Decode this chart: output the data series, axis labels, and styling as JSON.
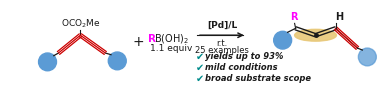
{
  "bg_color": "#ffffff",
  "blue_color": "#5b9bd5",
  "red_color": "#cc0000",
  "magenta_color": "#ff00ff",
  "teal_color": "#008B8B",
  "tan_color": "#e8c878",
  "black": "#1a1a1a",
  "oco2me_text": "OCO$_2$Me",
  "rb_R": "R",
  "rb_rest": "B(OH)$_2$",
  "equiv_text": "1.1 equiv",
  "arrow_top": "[Pd]/L",
  "arrow_mid": "r.t.",
  "arrow_bot": "25 examples",
  "bullet1": "yields up to 93%",
  "bullet2": "mild conditions",
  "bullet3": "broad substrate scope",
  "R_label": "R",
  "H_label": "H"
}
